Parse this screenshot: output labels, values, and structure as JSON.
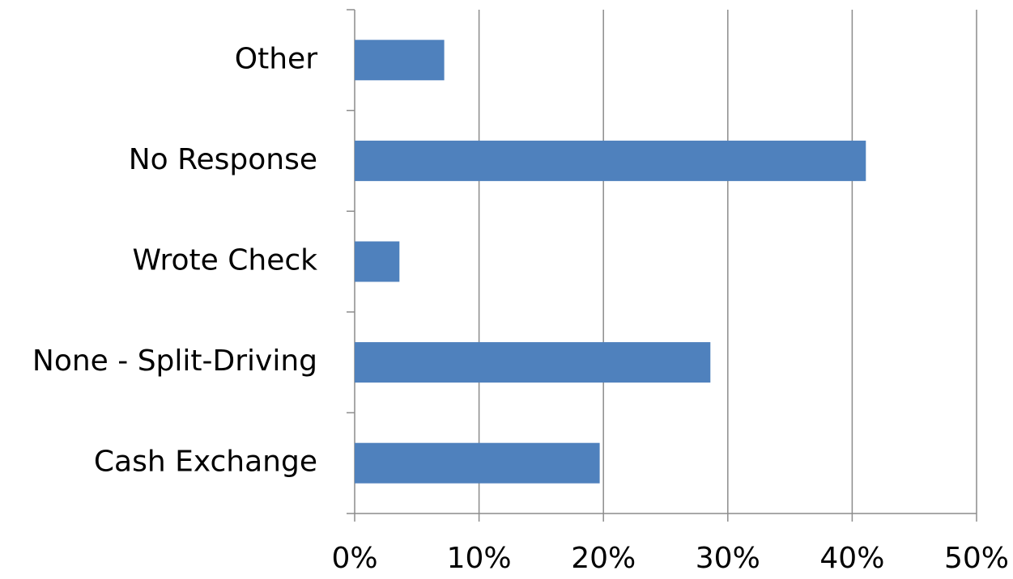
{
  "chart_data": {
    "type": "hbar",
    "categories": [
      "Cash Exchange",
      "None - Split-Driving",
      "Wrote Check",
      "No Response",
      "Other"
    ],
    "values": [
      19.7,
      28.6,
      3.6,
      41.1,
      7.2
    ],
    "color": "#4f81bd",
    "xlim": [
      0,
      50
    ],
    "xticks": [
      {
        "value": 0,
        "label": "0%"
      },
      {
        "value": 10,
        "label": "10%"
      },
      {
        "value": 20,
        "label": "20%"
      },
      {
        "value": 30,
        "label": "30%"
      },
      {
        "value": 40,
        "label": "40%"
      },
      {
        "value": 50,
        "label": "50%"
      }
    ],
    "grid": true
  }
}
